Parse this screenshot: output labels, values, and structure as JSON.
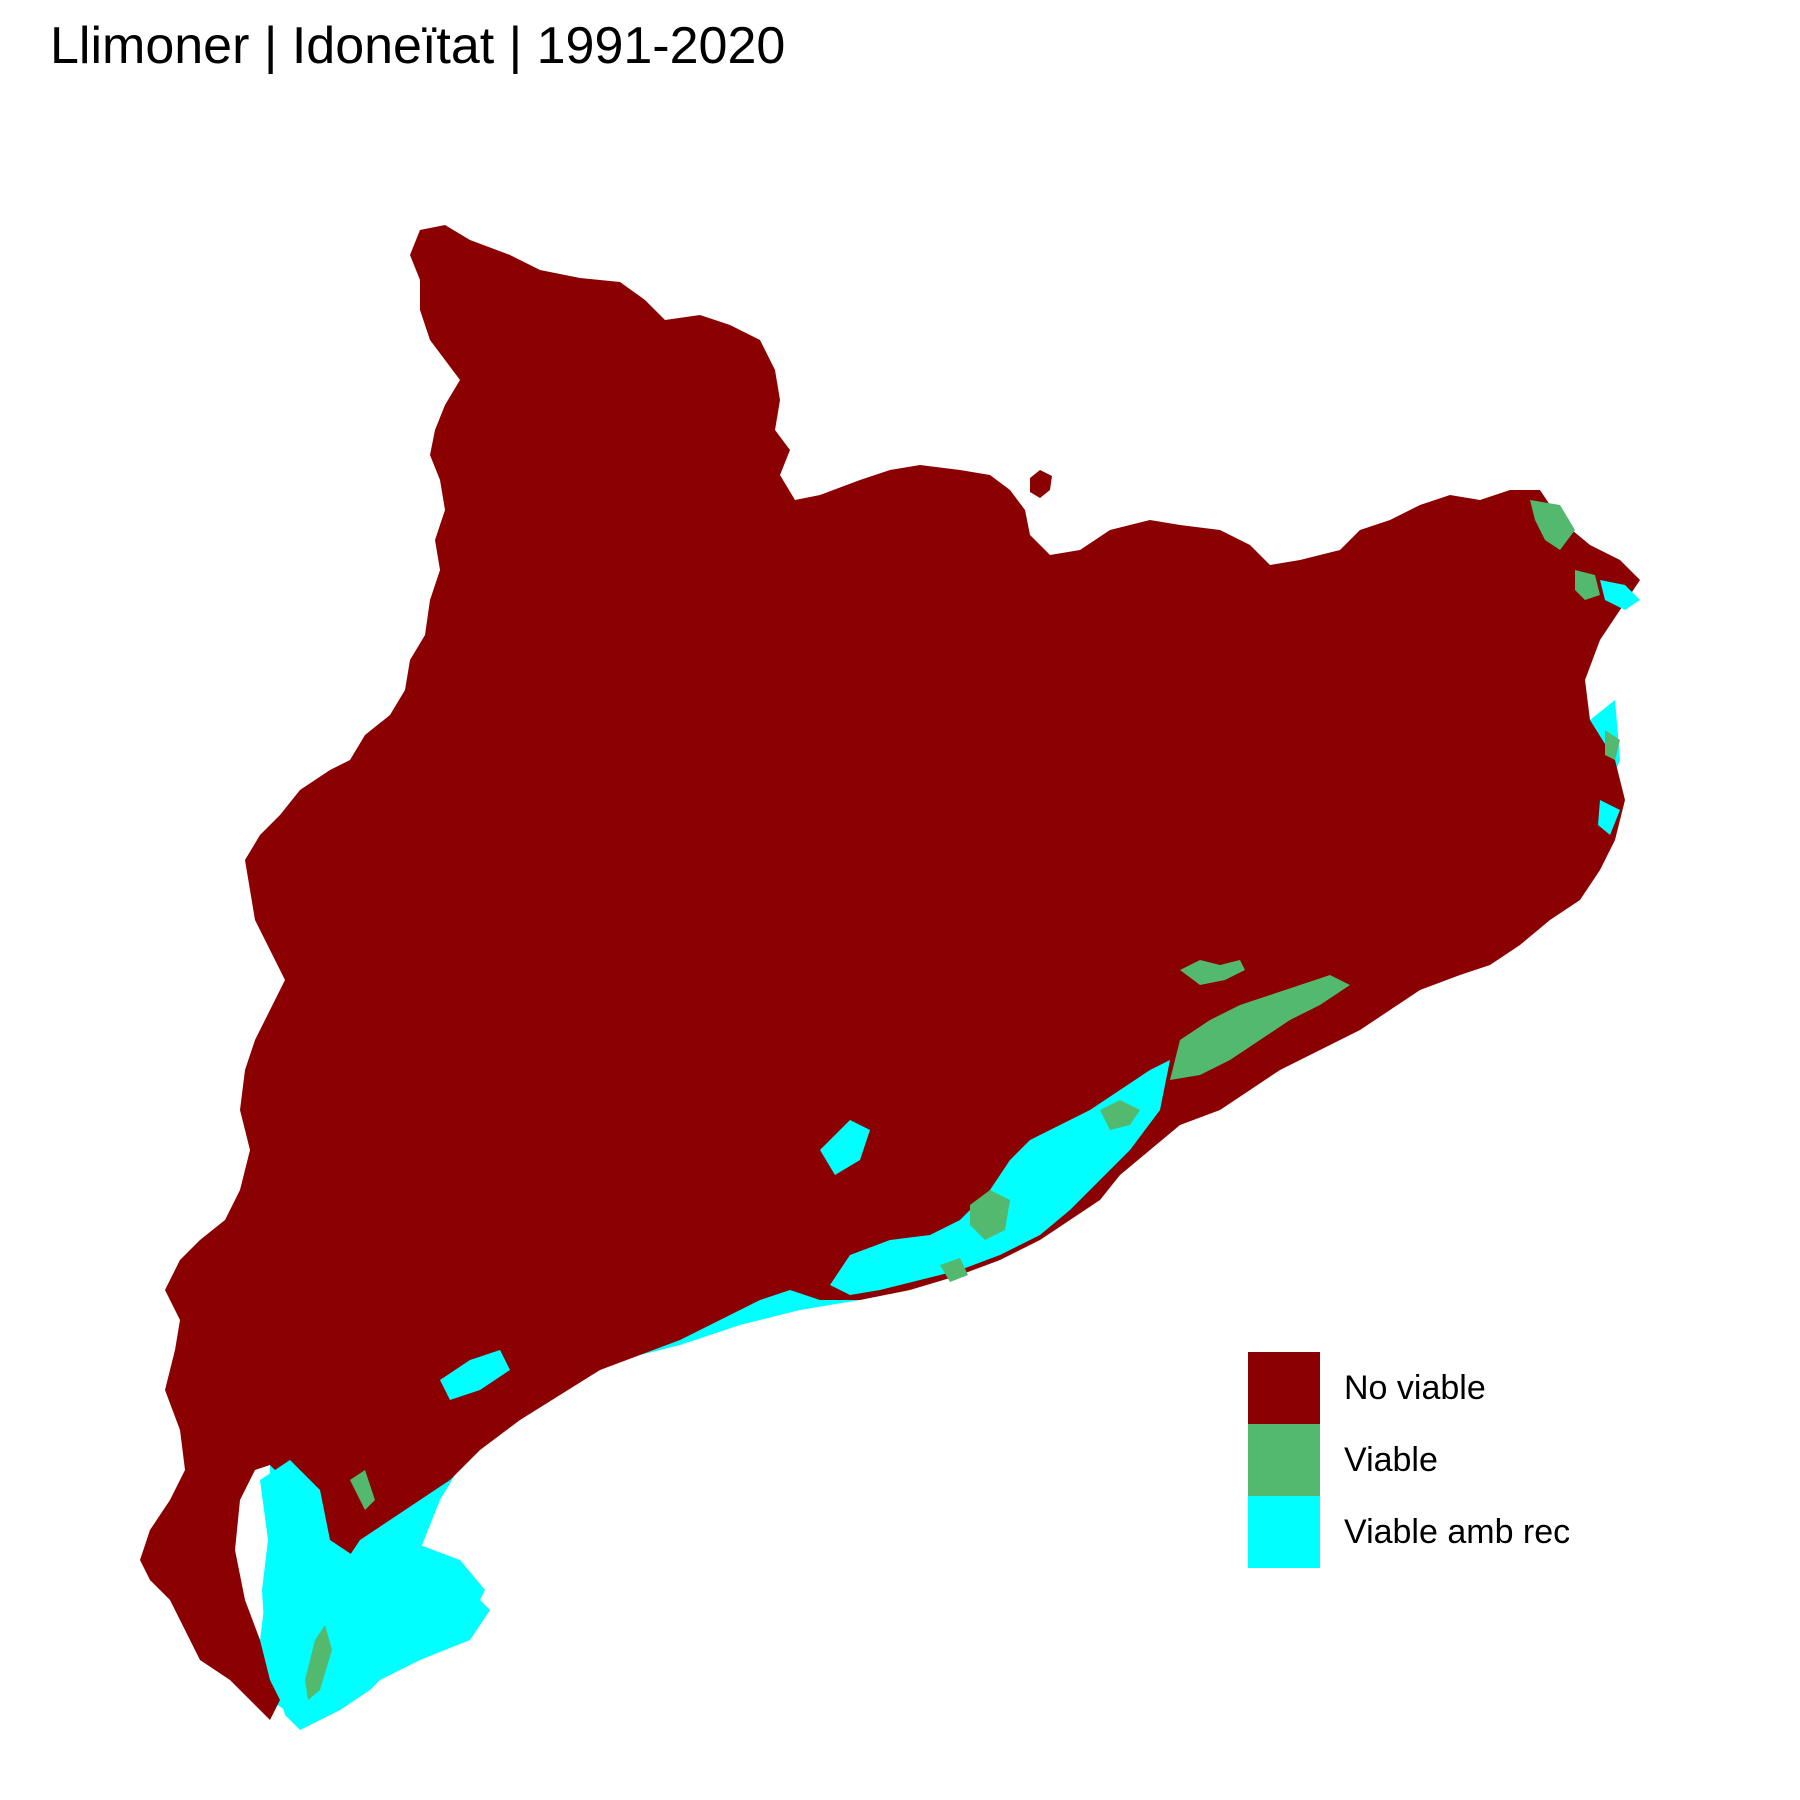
{
  "title": "Llimoner | Idoneïtat | 1991-2020",
  "legend": {
    "items": [
      {
        "label": "No viable",
        "color": "#8B0000"
      },
      {
        "label": "Viable",
        "color": "#53B96E"
      },
      {
        "label": "Viable amb rec",
        "color": "#00FFFF"
      }
    ]
  },
  "colors": {
    "background": "#FFFFFF",
    "no_viable": "#8B0000",
    "viable": "#53B96E",
    "viable_amb_rec": "#00FFFF"
  }
}
